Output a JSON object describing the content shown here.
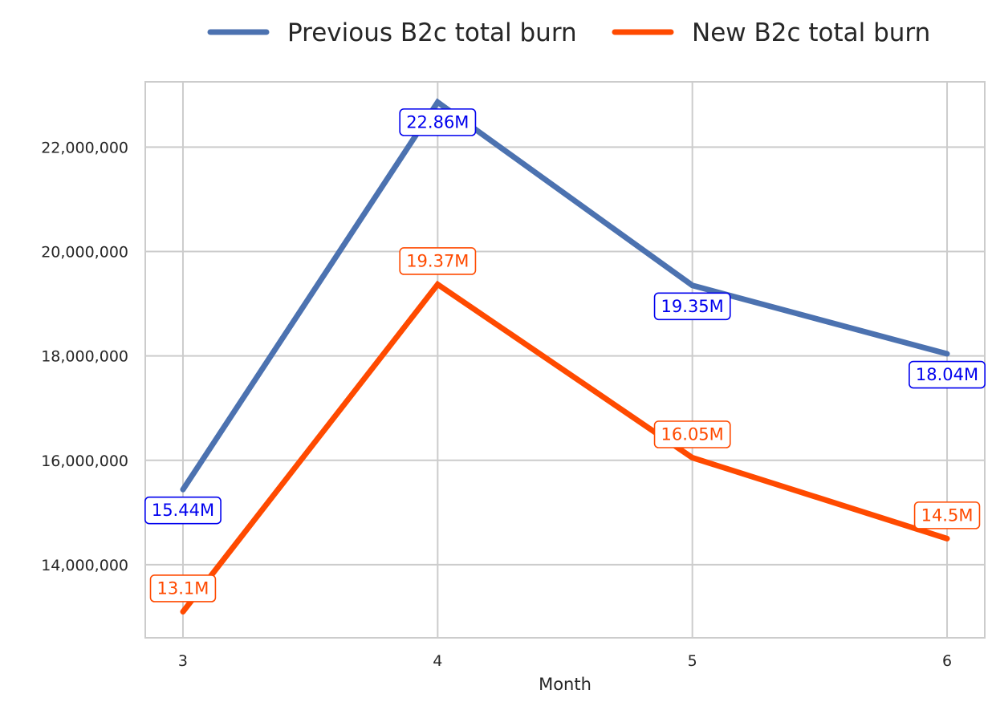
{
  "chart_data": {
    "type": "line",
    "title": "",
    "xlabel": "Month",
    "ylabel": "",
    "x": [
      3,
      4,
      5,
      6
    ],
    "x_tick_labels": [
      "3",
      "4",
      "5",
      "6"
    ],
    "ylim": [
      12600000,
      23250000
    ],
    "y_ticks": [
      14000000,
      16000000,
      18000000,
      20000000,
      22000000
    ],
    "y_tick_labels": [
      "14,000,000",
      "16,000,000",
      "18,000,000",
      "20,000,000",
      "22,000,000"
    ],
    "grid": true,
    "legend_position": "top-center, outside plot",
    "series": [
      {
        "name": "Previous B2c total burn",
        "values": [
          15440000,
          22860000,
          19350000,
          18040000
        ],
        "data_labels": [
          "15.44M",
          "22.86M",
          "19.35M",
          "18.04M"
        ],
        "label_placement": [
          "below",
          "on",
          "below",
          "below"
        ],
        "color": "#4c72b0",
        "label_color": "#0000ee"
      },
      {
        "name": "New B2c total burn",
        "values": [
          13100000,
          19370000,
          16050000,
          14500000
        ],
        "data_labels": [
          "13.1M",
          "19.37M",
          "16.05M",
          "14.5M"
        ],
        "label_placement": [
          "above",
          "above",
          "above",
          "above"
        ],
        "color": "#ff4a00",
        "label_color": "#ff4a00"
      }
    ]
  }
}
